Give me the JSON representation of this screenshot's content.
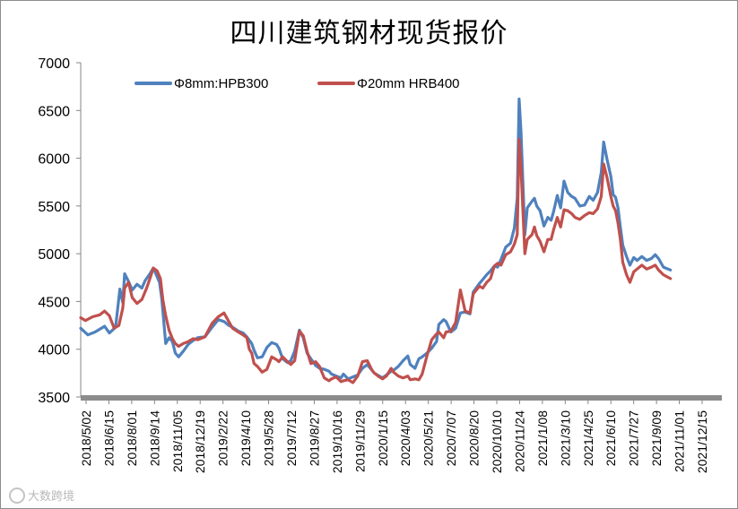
{
  "chart_data": {
    "type": "line",
    "title": "四川建筑钢材现货报价",
    "xlabel": "",
    "ylabel": "",
    "ylim": [
      3500,
      7000
    ],
    "yticks": [
      3500,
      4000,
      4500,
      5000,
      5500,
      6000,
      6500,
      7000
    ],
    "x_range": [
      0,
      1335
    ],
    "x_tick_labels": [
      "2018/5/02",
      "2018/6/15",
      "2018/8/01",
      "2018/9/14",
      "2018/11/05",
      "2018/12/19",
      "2019/2/22",
      "2019/4/10",
      "2019/5/28",
      "2019/7/12",
      "2019/8/27",
      "2019/10/16",
      "2019/11/29",
      "2020/1/15",
      "2020/4/03",
      "2020/5/21",
      "2020/7/07",
      "2020/8/20",
      "2020/10/10",
      "2020/11/24",
      "2021/1/08",
      "2021/3/10",
      "2021/4/25",
      "2021/6/10",
      "2021/7/27",
      "2021/9/09",
      "2021/11/01",
      "2021/12/15"
    ],
    "grid": false,
    "legend_position": "top-left",
    "series": [
      {
        "name": "Φ8mm:HPB300",
        "color": "#4f81bd",
        "points": [
          [
            0,
            4220
          ],
          [
            15,
            4150
          ],
          [
            30,
            4180
          ],
          [
            50,
            4240
          ],
          [
            60,
            4170
          ],
          [
            73,
            4230
          ],
          [
            82,
            4630
          ],
          [
            88,
            4490
          ],
          [
            92,
            4790
          ],
          [
            100,
            4710
          ],
          [
            108,
            4620
          ],
          [
            118,
            4680
          ],
          [
            128,
            4640
          ],
          [
            135,
            4720
          ],
          [
            145,
            4790
          ],
          [
            152,
            4850
          ],
          [
            160,
            4760
          ],
          [
            165,
            4700
          ],
          [
            170,
            4520
          ],
          [
            178,
            4060
          ],
          [
            185,
            4120
          ],
          [
            192,
            4080
          ],
          [
            198,
            3960
          ],
          [
            205,
            3920
          ],
          [
            215,
            3980
          ],
          [
            225,
            4050
          ],
          [
            235,
            4090
          ],
          [
            245,
            4120
          ],
          [
            260,
            4130
          ],
          [
            275,
            4230
          ],
          [
            288,
            4310
          ],
          [
            300,
            4290
          ],
          [
            310,
            4250
          ],
          [
            318,
            4230
          ],
          [
            330,
            4190
          ],
          [
            340,
            4170
          ],
          [
            348,
            4130
          ],
          [
            358,
            4060
          ],
          [
            363,
            3990
          ],
          [
            370,
            3910
          ],
          [
            380,
            3920
          ],
          [
            390,
            4020
          ],
          [
            400,
            4070
          ],
          [
            410,
            4050
          ],
          [
            415,
            4010
          ],
          [
            423,
            3900
          ],
          [
            433,
            3860
          ],
          [
            440,
            3880
          ],
          [
            448,
            3980
          ],
          [
            458,
            4200
          ],
          [
            466,
            4120
          ],
          [
            474,
            3960
          ],
          [
            482,
            3900
          ],
          [
            492,
            3830
          ],
          [
            500,
            3800
          ],
          [
            510,
            3790
          ],
          [
            520,
            3770
          ],
          [
            525,
            3740
          ],
          [
            535,
            3720
          ],
          [
            545,
            3700
          ],
          [
            550,
            3740
          ],
          [
            560,
            3690
          ],
          [
            570,
            3710
          ],
          [
            580,
            3730
          ],
          [
            590,
            3800
          ],
          [
            600,
            3840
          ],
          [
            610,
            3780
          ],
          [
            615,
            3750
          ],
          [
            625,
            3720
          ],
          [
            632,
            3700
          ],
          [
            640,
            3730
          ],
          [
            650,
            3770
          ],
          [
            655,
            3780
          ],
          [
            665,
            3820
          ],
          [
            675,
            3880
          ],
          [
            685,
            3930
          ],
          [
            690,
            3840
          ],
          [
            700,
            3800
          ],
          [
            708,
            3900
          ],
          [
            715,
            3920
          ],
          [
            725,
            3960
          ],
          [
            735,
            4010
          ],
          [
            745,
            4080
          ],
          [
            750,
            4260
          ],
          [
            760,
            4310
          ],
          [
            765,
            4290
          ],
          [
            775,
            4180
          ],
          [
            785,
            4220
          ],
          [
            795,
            4380
          ],
          [
            805,
            4390
          ],
          [
            815,
            4370
          ],
          [
            822,
            4600
          ],
          [
            835,
            4690
          ],
          [
            842,
            4730
          ],
          [
            850,
            4780
          ],
          [
            858,
            4820
          ],
          [
            866,
            4870
          ],
          [
            873,
            4860
          ],
          [
            880,
            4940
          ],
          [
            890,
            5070
          ],
          [
            900,
            5110
          ],
          [
            908,
            5270
          ],
          [
            914,
            5580
          ],
          [
            918,
            6620
          ],
          [
            922,
            6280
          ],
          [
            930,
            5200
          ],
          [
            935,
            5480
          ],
          [
            945,
            5550
          ],
          [
            950,
            5580
          ],
          [
            955,
            5500
          ],
          [
            962,
            5450
          ],
          [
            970,
            5290
          ],
          [
            978,
            5380
          ],
          [
            985,
            5350
          ],
          [
            990,
            5440
          ],
          [
            998,
            5610
          ],
          [
            1005,
            5480
          ],
          [
            1012,
            5760
          ],
          [
            1020,
            5640
          ],
          [
            1028,
            5600
          ],
          [
            1035,
            5580
          ],
          [
            1045,
            5500
          ],
          [
            1055,
            5510
          ],
          [
            1065,
            5600
          ],
          [
            1073,
            5560
          ],
          [
            1082,
            5640
          ],
          [
            1090,
            5850
          ],
          [
            1095,
            6170
          ],
          [
            1102,
            5990
          ],
          [
            1110,
            5810
          ],
          [
            1115,
            5620
          ],
          [
            1120,
            5590
          ],
          [
            1125,
            5480
          ],
          [
            1130,
            5280
          ],
          [
            1135,
            5090
          ],
          [
            1143,
            4970
          ],
          [
            1150,
            4880
          ],
          [
            1158,
            4960
          ],
          [
            1165,
            4930
          ],
          [
            1175,
            4970
          ],
          [
            1185,
            4930
          ],
          [
            1195,
            4950
          ],
          [
            1203,
            4990
          ],
          [
            1210,
            4950
          ],
          [
            1220,
            4860
          ],
          [
            1235,
            4830
          ]
        ]
      },
      {
        "name": "Φ20mm HRB400",
        "color": "#c0504d",
        "points": [
          [
            0,
            4330
          ],
          [
            10,
            4300
          ],
          [
            25,
            4340
          ],
          [
            40,
            4360
          ],
          [
            50,
            4400
          ],
          [
            60,
            4350
          ],
          [
            70,
            4220
          ],
          [
            80,
            4250
          ],
          [
            88,
            4430
          ],
          [
            92,
            4640
          ],
          [
            100,
            4700
          ],
          [
            108,
            4540
          ],
          [
            118,
            4480
          ],
          [
            128,
            4520
          ],
          [
            138,
            4640
          ],
          [
            145,
            4740
          ],
          [
            152,
            4850
          ],
          [
            160,
            4820
          ],
          [
            167,
            4740
          ],
          [
            172,
            4520
          ],
          [
            178,
            4350
          ],
          [
            185,
            4200
          ],
          [
            192,
            4110
          ],
          [
            198,
            4060
          ],
          [
            205,
            4030
          ],
          [
            215,
            4060
          ],
          [
            225,
            4080
          ],
          [
            235,
            4110
          ],
          [
            245,
            4100
          ],
          [
            260,
            4130
          ],
          [
            275,
            4270
          ],
          [
            288,
            4340
          ],
          [
            300,
            4380
          ],
          [
            310,
            4290
          ],
          [
            318,
            4220
          ],
          [
            330,
            4180
          ],
          [
            340,
            4150
          ],
          [
            348,
            4120
          ],
          [
            353,
            4000
          ],
          [
            358,
            3960
          ],
          [
            363,
            3850
          ],
          [
            370,
            3820
          ],
          [
            380,
            3760
          ],
          [
            390,
            3790
          ],
          [
            400,
            3920
          ],
          [
            410,
            3890
          ],
          [
            415,
            3870
          ],
          [
            423,
            3920
          ],
          [
            433,
            3870
          ],
          [
            440,
            3840
          ],
          [
            448,
            3880
          ],
          [
            458,
            4190
          ],
          [
            466,
            4140
          ],
          [
            474,
            3980
          ],
          [
            482,
            3850
          ],
          [
            492,
            3870
          ],
          [
            500,
            3820
          ],
          [
            510,
            3700
          ],
          [
            520,
            3670
          ],
          [
            525,
            3690
          ],
          [
            535,
            3710
          ],
          [
            545,
            3660
          ],
          [
            550,
            3670
          ],
          [
            560,
            3680
          ],
          [
            570,
            3650
          ],
          [
            580,
            3720
          ],
          [
            590,
            3870
          ],
          [
            600,
            3880
          ],
          [
            610,
            3780
          ],
          [
            615,
            3750
          ],
          [
            625,
            3710
          ],
          [
            632,
            3690
          ],
          [
            640,
            3720
          ],
          [
            650,
            3800
          ],
          [
            655,
            3760
          ],
          [
            665,
            3720
          ],
          [
            675,
            3700
          ],
          [
            685,
            3720
          ],
          [
            690,
            3680
          ],
          [
            700,
            3690
          ],
          [
            708,
            3680
          ],
          [
            715,
            3740
          ],
          [
            725,
            3930
          ],
          [
            735,
            4100
          ],
          [
            745,
            4160
          ],
          [
            750,
            4180
          ],
          [
            760,
            4120
          ],
          [
            765,
            4180
          ],
          [
            775,
            4190
          ],
          [
            785,
            4280
          ],
          [
            795,
            4620
          ],
          [
            805,
            4400
          ],
          [
            815,
            4380
          ],
          [
            822,
            4580
          ],
          [
            835,
            4660
          ],
          [
            842,
            4640
          ],
          [
            850,
            4700
          ],
          [
            858,
            4740
          ],
          [
            866,
            4870
          ],
          [
            873,
            4900
          ],
          [
            880,
            4880
          ],
          [
            890,
            4990
          ],
          [
            900,
            5020
          ],
          [
            908,
            5100
          ],
          [
            914,
            5200
          ],
          [
            918,
            6200
          ],
          [
            922,
            5900
          ],
          [
            930,
            5000
          ],
          [
            935,
            5150
          ],
          [
            945,
            5200
          ],
          [
            950,
            5280
          ],
          [
            955,
            5190
          ],
          [
            962,
            5130
          ],
          [
            970,
            5020
          ],
          [
            978,
            5150
          ],
          [
            985,
            5150
          ],
          [
            990,
            5250
          ],
          [
            998,
            5380
          ],
          [
            1005,
            5280
          ],
          [
            1012,
            5460
          ],
          [
            1020,
            5450
          ],
          [
            1028,
            5420
          ],
          [
            1035,
            5380
          ],
          [
            1045,
            5360
          ],
          [
            1055,
            5400
          ],
          [
            1065,
            5430
          ],
          [
            1073,
            5420
          ],
          [
            1082,
            5470
          ],
          [
            1090,
            5600
          ],
          [
            1095,
            5940
          ],
          [
            1102,
            5800
          ],
          [
            1110,
            5600
          ],
          [
            1115,
            5500
          ],
          [
            1120,
            5450
          ],
          [
            1125,
            5320
          ],
          [
            1130,
            5150
          ],
          [
            1135,
            4910
          ],
          [
            1143,
            4780
          ],
          [
            1150,
            4700
          ],
          [
            1158,
            4810
          ],
          [
            1165,
            4840
          ],
          [
            1175,
            4880
          ],
          [
            1185,
            4840
          ],
          [
            1195,
            4860
          ],
          [
            1203,
            4880
          ],
          [
            1210,
            4830
          ],
          [
            1220,
            4780
          ],
          [
            1235,
            4740
          ]
        ]
      }
    ]
  },
  "watermark": {
    "text": "大数跨境",
    "icon": "logo-icon"
  }
}
